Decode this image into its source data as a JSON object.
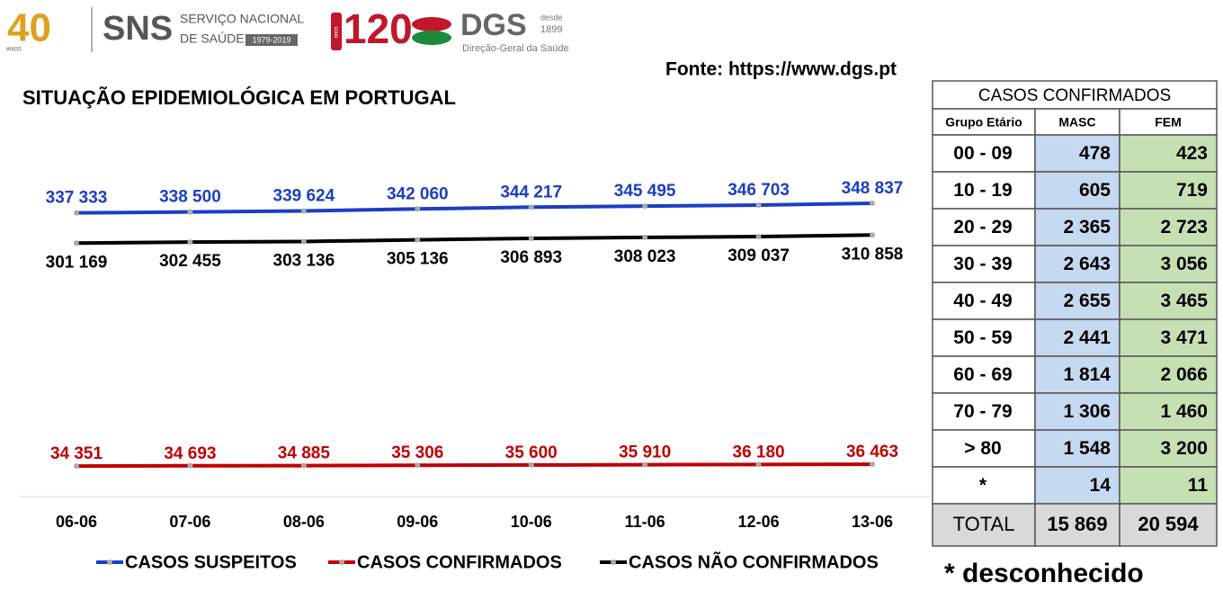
{
  "header": {
    "anniversary": "40",
    "anniversary_unit": "ANOS",
    "sns": "SNS",
    "sns_line1": "SERVIÇO NACIONAL",
    "sns_line2": "DE SAÚDE",
    "sns_years": "1979-2019",
    "dgs_anniversary": "120",
    "dgs_anniversary_unit": "anos",
    "dgs": "DGS",
    "dgs_since": "desde",
    "dgs_year": "1899",
    "dgs_name": "Direção-Geral da Saúde",
    "source": "Fonte: https://www.dgs.pt"
  },
  "chart_data": {
    "type": "line",
    "title": "SITUAÇÃO EPIDEMIOLÓGICA EM PORTUGAL",
    "categories": [
      "06-06",
      "07-06",
      "08-06",
      "09-06",
      "10-06",
      "11-06",
      "12-06",
      "13-06"
    ],
    "series": [
      {
        "name": "CASOS SUSPEITOS",
        "color": "#1a3fc4",
        "values": [
          337333,
          338500,
          339624,
          342060,
          344217,
          345495,
          346703,
          348837
        ],
        "value_labels": [
          "337 333",
          "338 500",
          "339 624",
          "342 060",
          "344 217",
          "345 495",
          "346 703",
          "348 837"
        ]
      },
      {
        "name": "CASOS CONFIRMADOS",
        "color": "#c00000",
        "values": [
          34351,
          34693,
          34885,
          35306,
          35600,
          35910,
          36180,
          36463
        ],
        "value_labels": [
          "34 351",
          "34 693",
          "34 885",
          "35 306",
          "35 600",
          "35 910",
          "36 180",
          "36 463"
        ]
      },
      {
        "name": "CASOS NÃO CONFIRMADOS",
        "color": "#000000",
        "values": [
          301169,
          302455,
          303136,
          305136,
          306893,
          308023,
          309037,
          310858
        ],
        "value_labels": [
          "301 169",
          "302 455",
          "303 136",
          "305 136",
          "306 893",
          "308 023",
          "309 037",
          "310 858"
        ]
      }
    ],
    "legend": "bottom"
  },
  "table": {
    "title": "CASOS CONFIRMADOS",
    "columns": [
      "Grupo Etário",
      "MASC",
      "FEM"
    ],
    "rows": [
      [
        "00 - 09",
        "478",
        "423"
      ],
      [
        "10 - 19",
        "605",
        "719"
      ],
      [
        "20 - 29",
        "2 365",
        "2 723"
      ],
      [
        "30 - 39",
        "2 643",
        "3 056"
      ],
      [
        "40 - 49",
        "2 655",
        "3 465"
      ],
      [
        "50 - 59",
        "2 441",
        "3 471"
      ],
      [
        "60 - 69",
        "1 814",
        "2 066"
      ],
      [
        "70 - 79",
        "1 306",
        "1 460"
      ],
      [
        "> 80",
        "1 548",
        "3 200"
      ],
      [
        "*",
        "14",
        "11"
      ]
    ],
    "total": [
      "TOTAL",
      "15 869",
      "20 594"
    ],
    "footnote": "* desconhecido"
  }
}
